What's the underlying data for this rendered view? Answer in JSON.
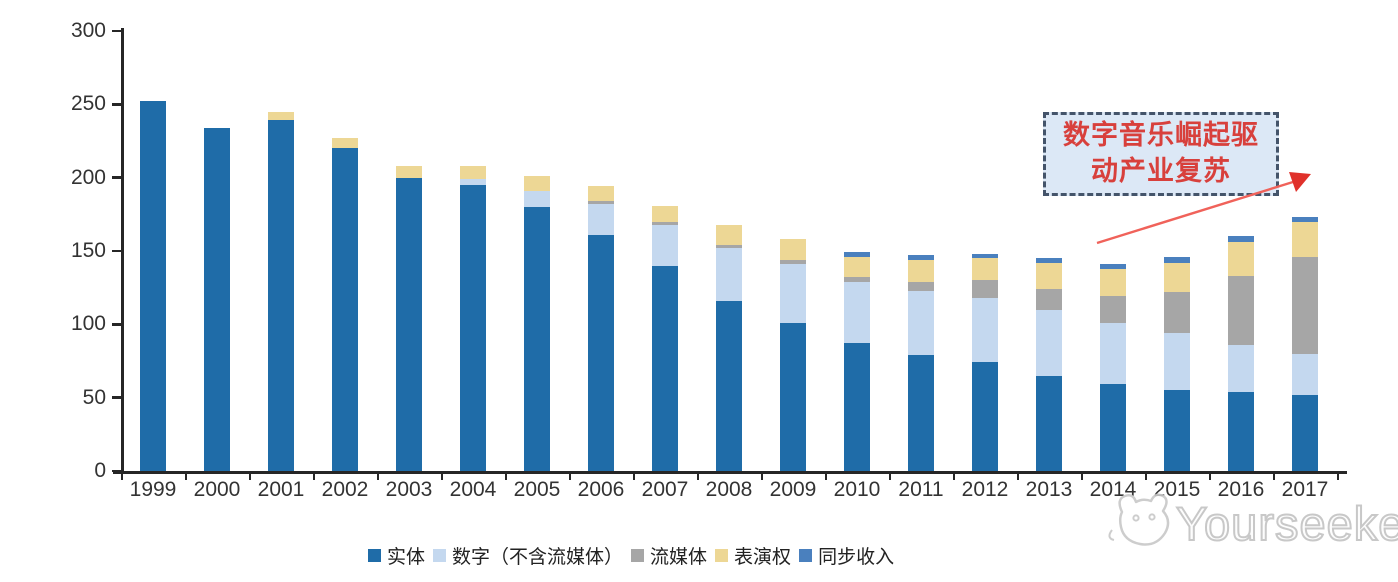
{
  "chart_data": {
    "type": "bar",
    "stacked": true,
    "title": "",
    "categories": [
      "1999",
      "2000",
      "2001",
      "2002",
      "2003",
      "2004",
      "2005",
      "2006",
      "2007",
      "2008",
      "2009",
      "2010",
      "2011",
      "2012",
      "2013",
      "2014",
      "2015",
      "2016",
      "2017"
    ],
    "series": [
      {
        "key": "physical",
        "name": "实体",
        "color": "#1F6CA8",
        "values": [
          252,
          234,
          239,
          220,
          200,
          195,
          180,
          161,
          140,
          116,
          101,
          87,
          79,
          74,
          65,
          59,
          55,
          54,
          52
        ]
      },
      {
        "key": "digital-ex-streaming",
        "name": "数字（不含流媒体）",
        "color": "#C4D8EF",
        "values": [
          0,
          0,
          0,
          0,
          0,
          4,
          11,
          21,
          28,
          36,
          40,
          42,
          44,
          44,
          45,
          42,
          39,
          32,
          28
        ]
      },
      {
        "key": "streaming",
        "name": "流媒体",
        "color": "#A6A6A6",
        "values": [
          0,
          0,
          0,
          0,
          0,
          0,
          0,
          2,
          2,
          2,
          3,
          3,
          6,
          12,
          14,
          18,
          28,
          47,
          66
        ]
      },
      {
        "key": "performance-rights",
        "name": "表演权",
        "color": "#EDD795",
        "values": [
          0,
          0,
          6,
          7,
          8,
          9,
          10,
          10,
          11,
          14,
          14,
          14,
          15,
          15,
          18,
          19,
          20,
          23,
          24
        ]
      },
      {
        "key": "sync-revenue",
        "name": "同步收入",
        "color": "#4A80BE",
        "values": [
          0,
          0,
          0,
          0,
          0,
          0,
          0,
          0,
          0,
          0,
          0,
          3,
          3,
          3,
          3,
          3,
          4,
          4,
          3
        ]
      }
    ],
    "ylim": [
      0,
      300
    ],
    "yticks": [
      0,
      50,
      100,
      150,
      200,
      250,
      300
    ],
    "grid": false,
    "legend_position": "bottom",
    "axis_color": "#262626",
    "label_color": "#333333"
  },
  "annotation": {
    "text_line1": "数字音乐崛起驱",
    "text_line2": "动产业复苏",
    "text_color": "#D8403C",
    "box_fill": "#DCE8F6",
    "box_border_color": "#44546A",
    "arrow_color": "#F0625A",
    "arrowhead_color": "#E0312B"
  },
  "watermark": {
    "text": "Yourseeker",
    "logo_icon": "cat-face-icon",
    "color": "#C8C8C8"
  }
}
